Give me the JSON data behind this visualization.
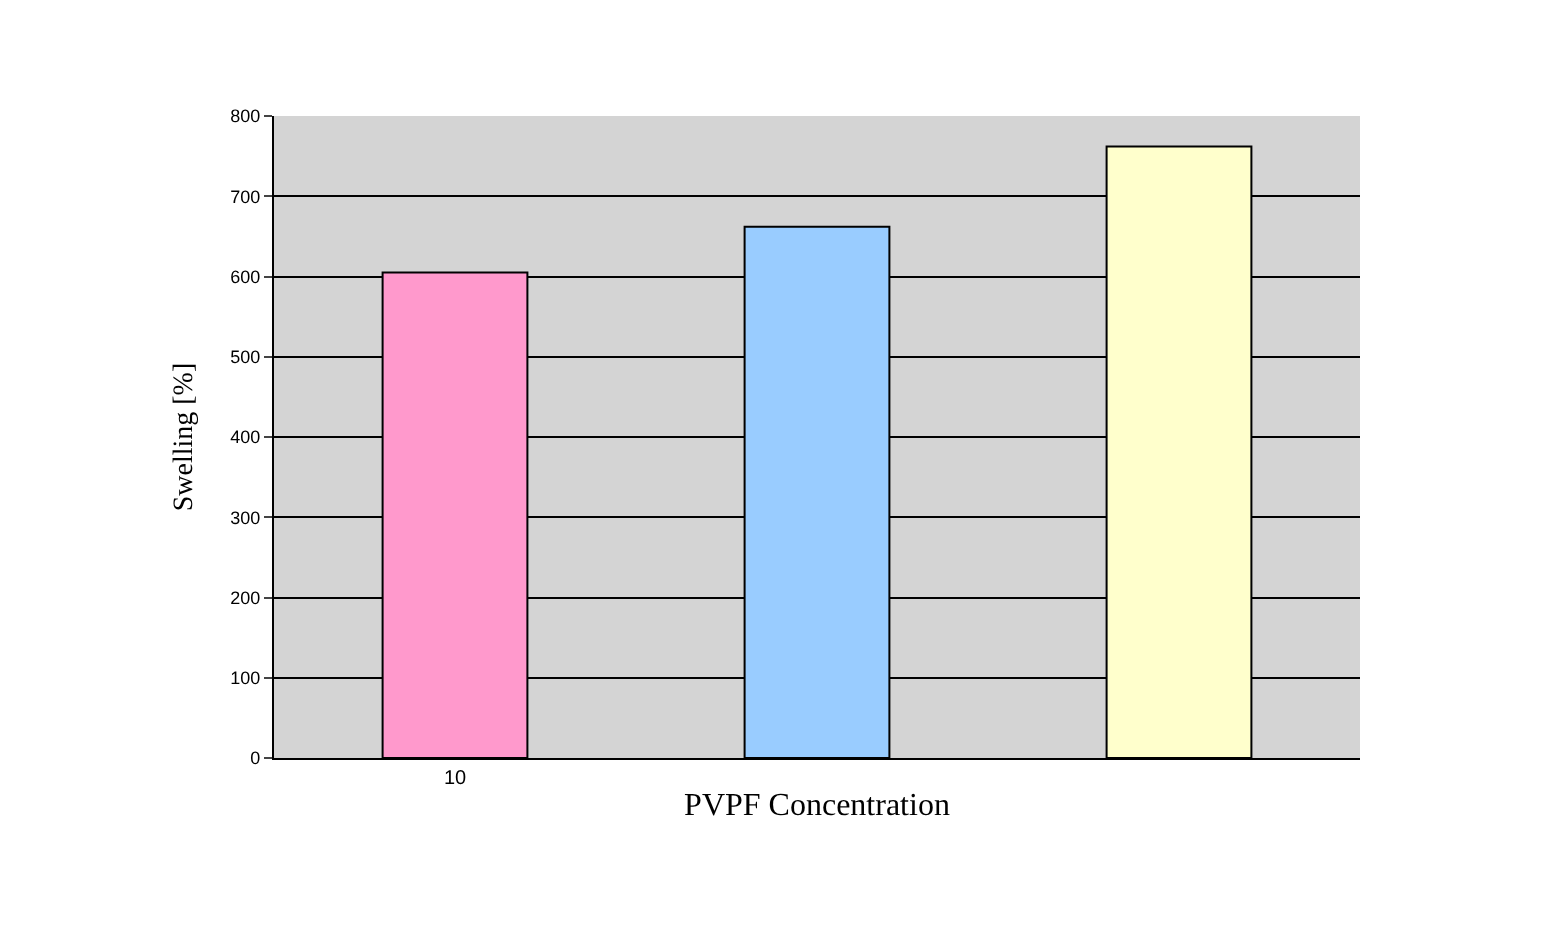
{
  "chart_data": {
    "type": "bar",
    "xlabel": "PVPF Concentration",
    "ylabel": "Swelling [%]",
    "categories": [
      "10",
      null,
      null
    ],
    "values": [
      605,
      662,
      762
    ],
    "colors": [
      "#ff99cc",
      "#99ccff",
      "#ffffcc"
    ],
    "ylim": [
      0,
      800
    ],
    "yticks": [
      0,
      100,
      200,
      300,
      400,
      500,
      600,
      700,
      800
    ],
    "grid": "y",
    "legend": false
  }
}
